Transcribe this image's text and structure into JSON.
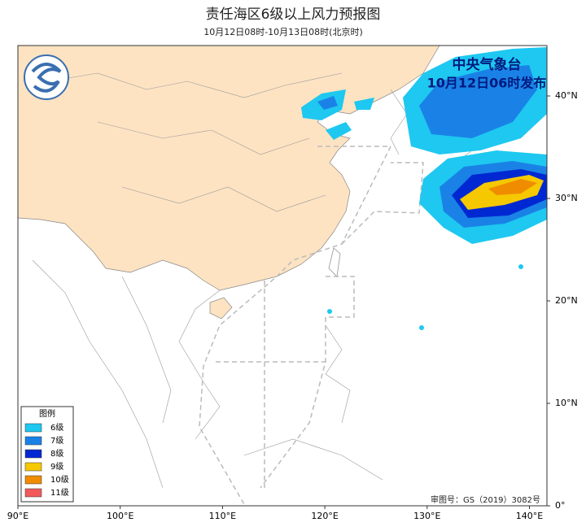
{
  "header": {
    "title": "责任海区6级以上风力预报图",
    "subtitle": "10月12日08时-10月13日08时(北京时)"
  },
  "map": {
    "agency": "中央气象台",
    "issued": "10月12日06时发布",
    "lon_ticks": [
      {
        "value": 90,
        "label": "90°E"
      },
      {
        "value": 100,
        "label": "100°E"
      },
      {
        "value": 110,
        "label": "110°E"
      },
      {
        "value": 120,
        "label": "120°E"
      },
      {
        "value": 130,
        "label": "130°E"
      },
      {
        "value": 140,
        "label": "140°E"
      }
    ],
    "lat_ticks": [
      {
        "value": 0,
        "label": "0°"
      },
      {
        "value": 10,
        "label": "10°N"
      },
      {
        "value": 20,
        "label": "20°N"
      },
      {
        "value": 30,
        "label": "30°N"
      },
      {
        "value": 40,
        "label": "40°N"
      }
    ],
    "approval": "审图号：GS（2019）3082号"
  },
  "legend": {
    "title": "图例",
    "items": [
      {
        "label": "6级",
        "color": "#1ec8f0"
      },
      {
        "label": "7级",
        "color": "#1a82e6"
      },
      {
        "label": "8级",
        "color": "#0028d2"
      },
      {
        "label": "9级",
        "color": "#f5c800"
      },
      {
        "label": "10级",
        "color": "#f08c00"
      },
      {
        "label": "11级",
        "color": "#f05a5a"
      }
    ]
  }
}
